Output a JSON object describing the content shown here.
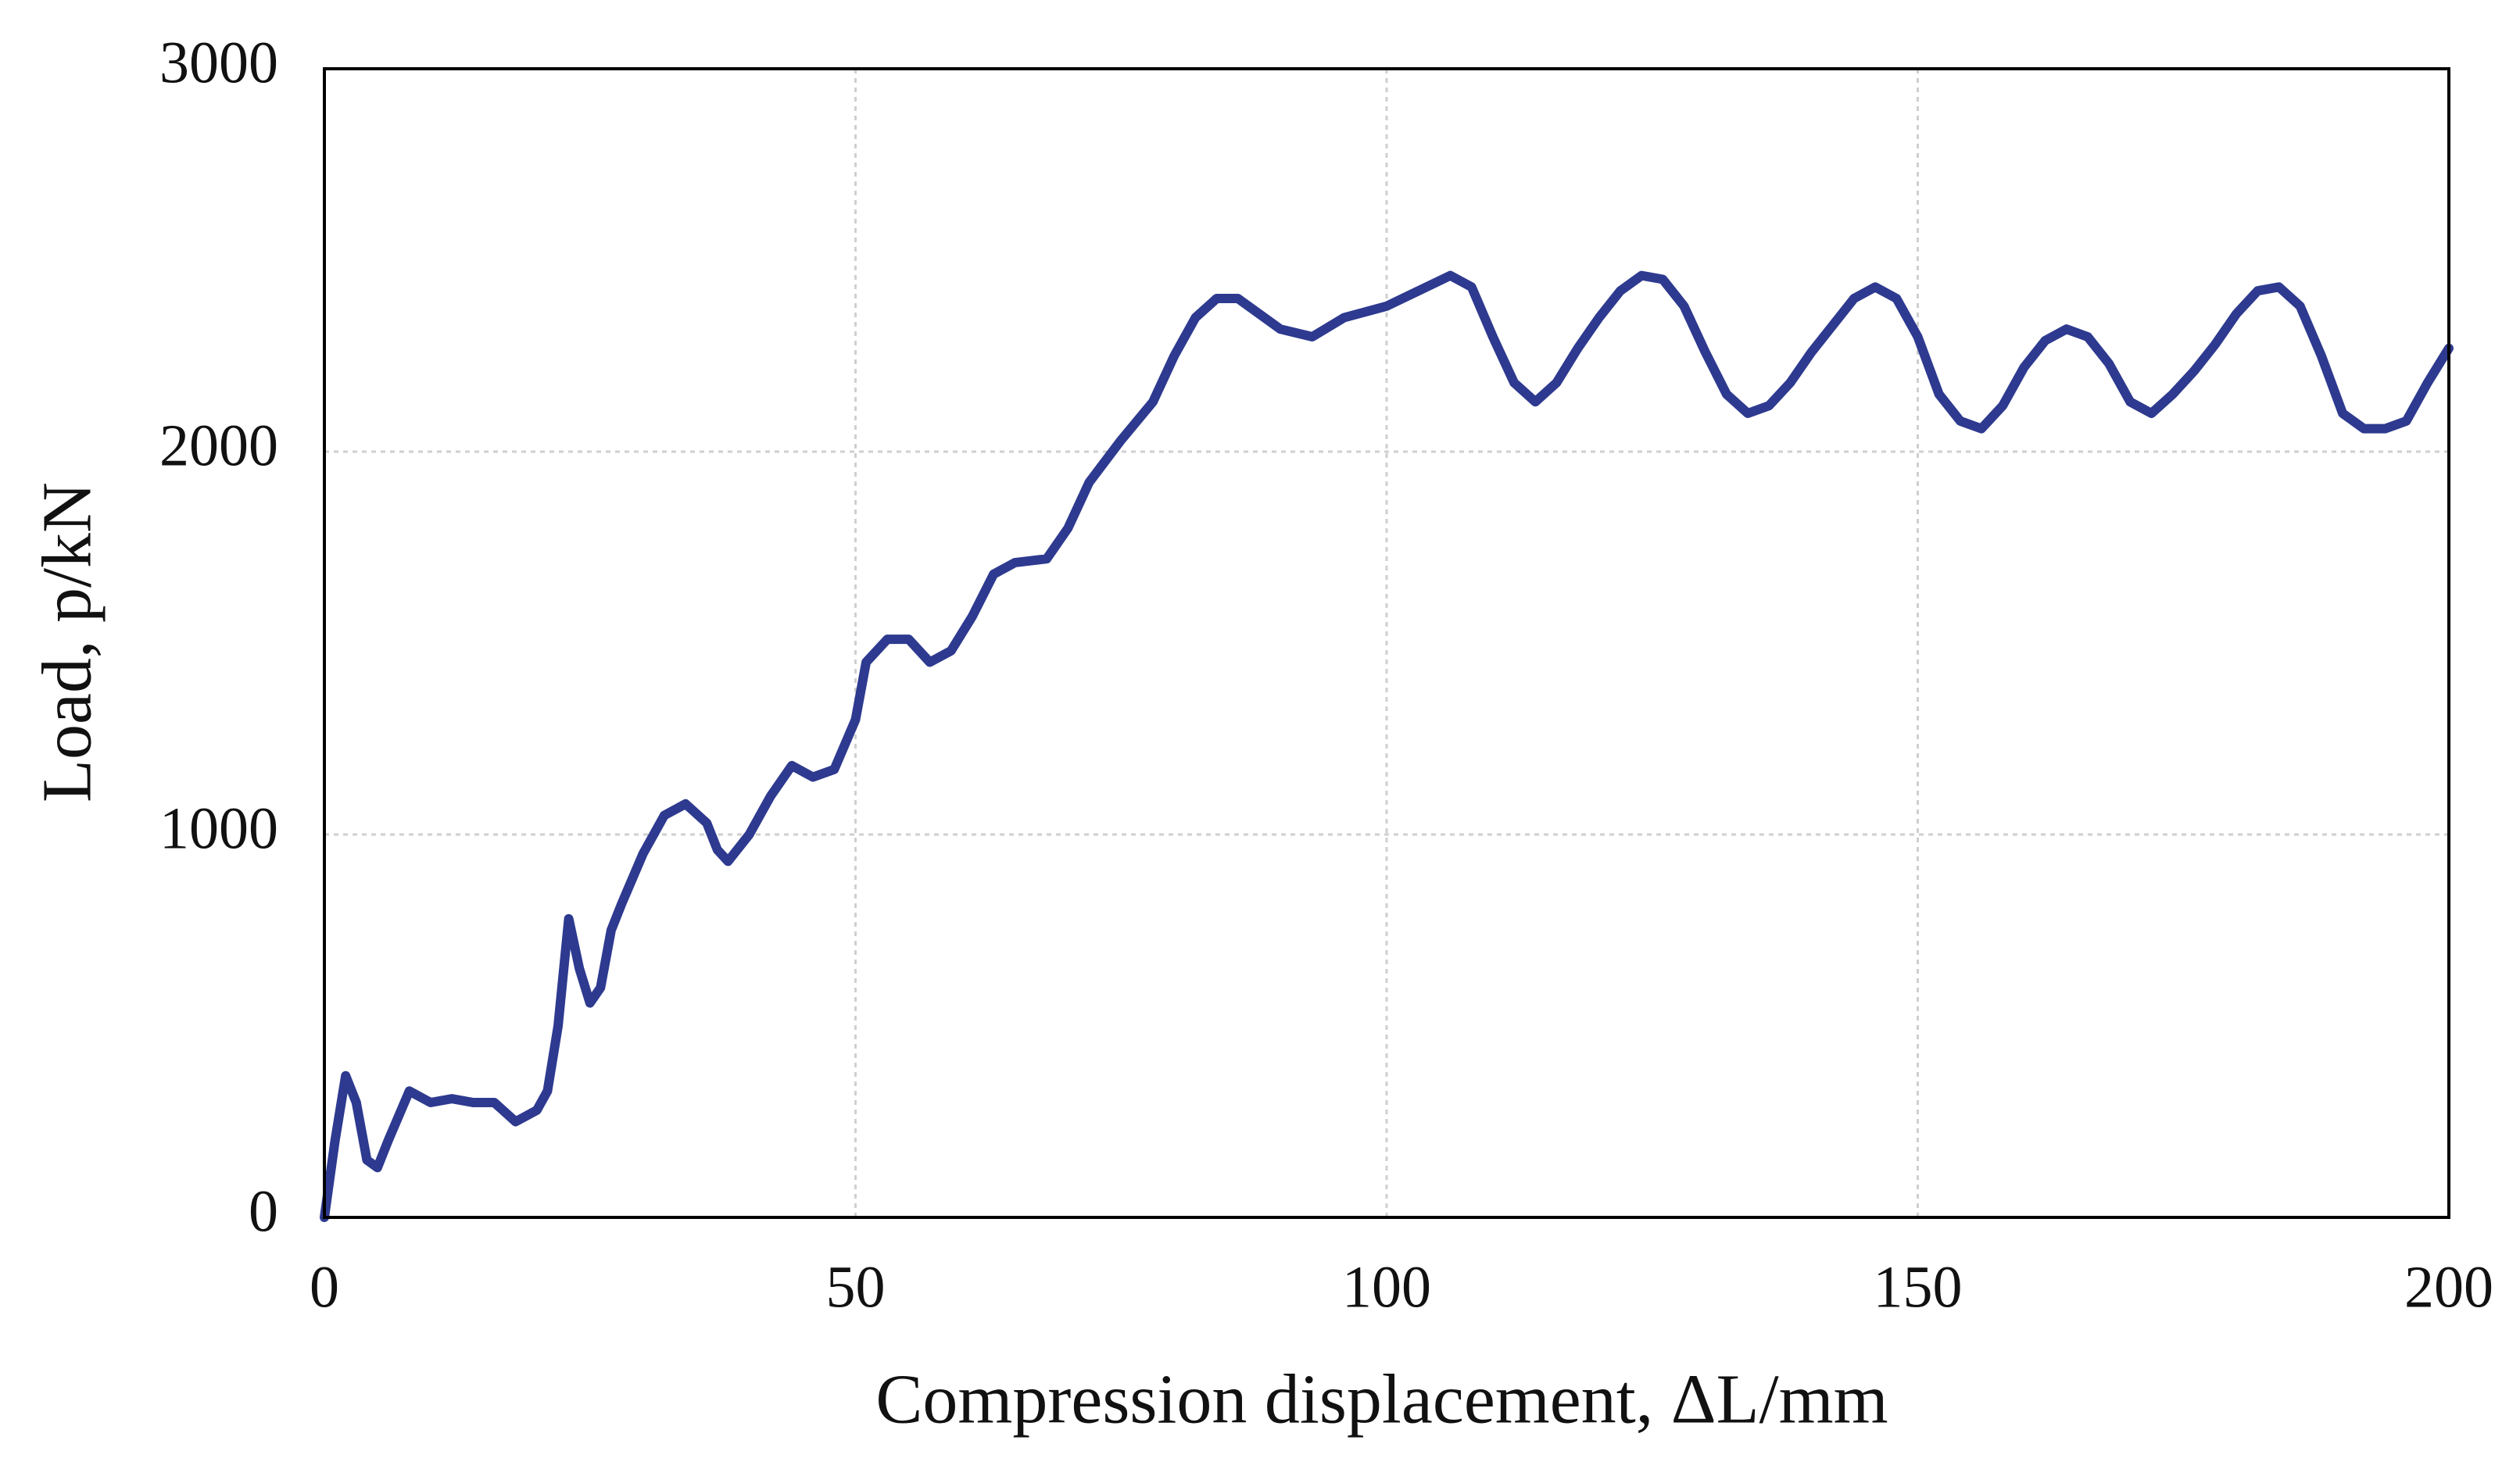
{
  "chart_data": {
    "type": "line",
    "x_label": "Compression displacement, ΔL/mm",
    "y_label": "Load, p/kN",
    "color": "#2e3a8f",
    "grid": true,
    "xlim": [
      0,
      200
    ],
    "xticks": [
      0,
      50,
      100,
      150,
      200
    ],
    "ylim": [
      0,
      3000
    ],
    "yticks": [
      0,
      1000,
      2000,
      3000
    ],
    "x": [
      0,
      1,
      2,
      3,
      4,
      5,
      6,
      8,
      10,
      12,
      14,
      16,
      18,
      20,
      21,
      22,
      23,
      24,
      25,
      26,
      27,
      28,
      30,
      32,
      34,
      36,
      37,
      38,
      40,
      42,
      44,
      46,
      48,
      50,
      51,
      53,
      55,
      57,
      59,
      61,
      63,
      65,
      68,
      70,
      72,
      75,
      78,
      80,
      82,
      84,
      86,
      88,
      90,
      93,
      96,
      100,
      103,
      106,
      108,
      110,
      112,
      114,
      116,
      118,
      120,
      122,
      124,
      126,
      128,
      130,
      132,
      134,
      136,
      138,
      140,
      142,
      144,
      146,
      148,
      150,
      152,
      154,
      156,
      158,
      160,
      162,
      164,
      166,
      168,
      170,
      172,
      174,
      176,
      178,
      180,
      182,
      184,
      186,
      188,
      190,
      192,
      194,
      196,
      198,
      200
    ],
    "values": [
      0,
      200,
      370,
      300,
      150,
      130,
      200,
      330,
      300,
      310,
      300,
      300,
      250,
      280,
      330,
      500,
      780,
      650,
      560,
      600,
      750,
      820,
      950,
      1050,
      1080,
      1030,
      960,
      930,
      1000,
      1100,
      1180,
      1150,
      1170,
      1300,
      1450,
      1510,
      1510,
      1450,
      1480,
      1570,
      1680,
      1710,
      1720,
      1800,
      1920,
      2030,
      2130,
      2250,
      2350,
      2400,
      2400,
      2360,
      2320,
      2300,
      2350,
      2380,
      2420,
      2460,
      2430,
      2300,
      2180,
      2130,
      2180,
      2270,
      2350,
      2420,
      2460,
      2450,
      2380,
      2260,
      2150,
      2100,
      2120,
      2180,
      2260,
      2330,
      2400,
      2430,
      2400,
      2300,
      2150,
      2080,
      2060,
      2120,
      2220,
      2290,
      2320,
      2300,
      2230,
      2130,
      2100,
      2150,
      2210,
      2280,
      2360,
      2420,
      2430,
      2380,
      2250,
      2100,
      2060,
      2060,
      2080,
      2180,
      2270
    ]
  }
}
